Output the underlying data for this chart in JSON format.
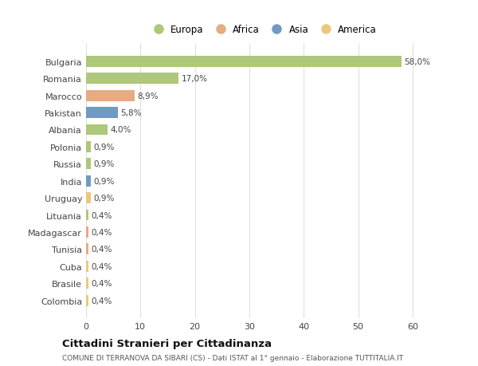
{
  "countries": [
    "Bulgaria",
    "Romania",
    "Marocco",
    "Pakistan",
    "Albania",
    "Polonia",
    "Russia",
    "India",
    "Uruguay",
    "Lituania",
    "Madagascar",
    "Tunisia",
    "Cuba",
    "Brasile",
    "Colombia"
  ],
  "values": [
    58.0,
    17.0,
    8.9,
    5.8,
    4.0,
    0.9,
    0.9,
    0.9,
    0.9,
    0.4,
    0.4,
    0.4,
    0.4,
    0.4,
    0.4
  ],
  "labels": [
    "58,0%",
    "17,0%",
    "8,9%",
    "5,8%",
    "4,0%",
    "0,9%",
    "0,9%",
    "0,9%",
    "0,9%",
    "0,4%",
    "0,4%",
    "0,4%",
    "0,4%",
    "0,4%",
    "0,4%"
  ],
  "colors": [
    "#adc87a",
    "#adc87a",
    "#e8aa80",
    "#7099c4",
    "#adc87a",
    "#adc87a",
    "#adc87a",
    "#7099c4",
    "#eac97e",
    "#adc87a",
    "#e8aa80",
    "#e8aa80",
    "#eac97e",
    "#eac97e",
    "#eac97e"
  ],
  "continent_colors": {
    "Europa": "#adc87a",
    "Africa": "#e8aa80",
    "Asia": "#7099c4",
    "America": "#eac97e"
  },
  "legend_labels": [
    "Europa",
    "Africa",
    "Asia",
    "America"
  ],
  "title": "Cittadini Stranieri per Cittadinanza",
  "subtitle": "COMUNE DI TERRANOVA DA SIBARI (CS) - Dati ISTAT al 1° gennaio - Elaborazione TUTTITALIA.IT",
  "xlim": [
    0,
    65
  ],
  "xticks": [
    0,
    10,
    20,
    30,
    40,
    50,
    60
  ],
  "background_color": "#ffffff",
  "grid_color": "#e0e0e0"
}
